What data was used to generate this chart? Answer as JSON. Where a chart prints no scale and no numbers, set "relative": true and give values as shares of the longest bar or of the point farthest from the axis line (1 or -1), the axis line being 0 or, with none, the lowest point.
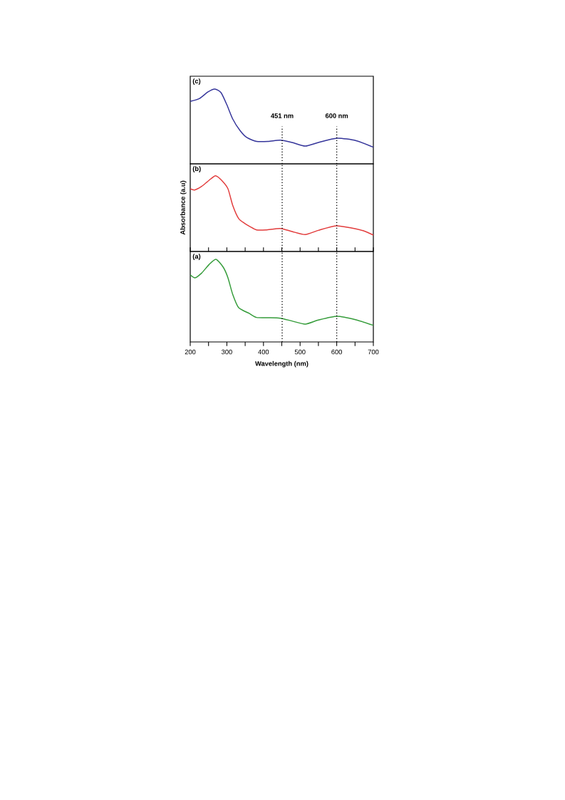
{
  "chart_data": [
    {
      "type": "line",
      "title": "(c)",
      "relative": true,
      "color": "#34349a",
      "xlim": [
        200,
        700
      ],
      "tick_labels": false,
      "x": [
        200,
        225,
        248,
        267,
        284,
        300,
        316,
        336,
        355,
        381,
        413,
        446,
        478,
        514,
        550,
        601,
        653,
        700
      ],
      "values": [
        0.835,
        0.873,
        0.96,
        1.0,
        0.952,
        0.79,
        0.6,
        0.445,
        0.35,
        0.3,
        0.3,
        0.317,
        0.286,
        0.238,
        0.286,
        0.343,
        0.31,
        0.222
      ],
      "ref_lines": [
        {
          "axis": "x",
          "value": 451,
          "label": "451 nm",
          "line_style": "dotted"
        },
        {
          "axis": "x",
          "value": 600,
          "label": "600 nm",
          "line_style": "dotted"
        }
      ]
    },
    {
      "type": "line",
      "title": "(b)",
      "ylabel": "Absorbance (a.u)",
      "relative": true,
      "color": "#e23c3c",
      "xlim": [
        200,
        700
      ],
      "tick_labels": false,
      "x": [
        200,
        212,
        231,
        251,
        269,
        286,
        303,
        316,
        332,
        348,
        364,
        381,
        407,
        446,
        478,
        514,
        550,
        598,
        640,
        673,
        700
      ],
      "values": [
        0.828,
        0.812,
        0.859,
        0.938,
        1.0,
        0.938,
        0.828,
        0.609,
        0.436,
        0.373,
        0.326,
        0.285,
        0.285,
        0.304,
        0.263,
        0.223,
        0.279,
        0.339,
        0.31,
        0.273,
        0.216
      ],
      "ref_lines": [
        {
          "axis": "x",
          "value": 451,
          "line_style": "dotted"
        },
        {
          "axis": "x",
          "value": 600,
          "line_style": "dotted"
        }
      ]
    },
    {
      "type": "line",
      "title": "(a)",
      "xlabel": "Wavelength (nm)",
      "relative": true,
      "color": "#359c3a",
      "xlim": [
        200,
        700
      ],
      "tick_labels": "x",
      "xticks": [
        200,
        {
          "value": 250,
          "label": null
        },
        300,
        {
          "value": 350,
          "label": null
        },
        400,
        {
          "value": 450,
          "label": null
        },
        500,
        {
          "value": 550,
          "label": null
        },
        600,
        {
          "value": 650,
          "label": null
        },
        700
      ],
      "x": [
        200,
        213,
        231,
        251,
        270,
        290,
        303,
        316,
        332,
        361,
        381,
        413,
        446,
        478,
        514,
        550,
        601,
        653,
        700
      ],
      "values": [
        0.813,
        0.776,
        0.833,
        0.934,
        1.0,
        0.905,
        0.776,
        0.575,
        0.416,
        0.345,
        0.296,
        0.293,
        0.287,
        0.253,
        0.216,
        0.265,
        0.31,
        0.267,
        0.201
      ],
      "ref_lines": [
        {
          "axis": "x",
          "value": 451,
          "line_style": "dotted"
        },
        {
          "axis": "x",
          "value": 600,
          "line_style": "dotted"
        }
      ]
    }
  ]
}
